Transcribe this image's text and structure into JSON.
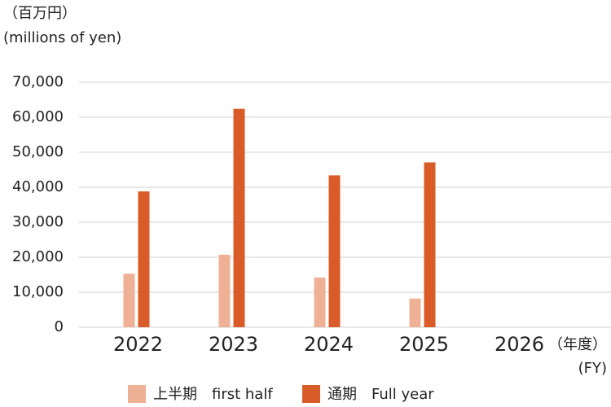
{
  "chart_data": {
    "type": "bar",
    "y_label_ja": "（百万円）",
    "y_label_en": "(millions of yen)",
    "x_label_ja": "（年度）",
    "x_label_en": "(FY)",
    "categories": [
      "2022",
      "2023",
      "2024",
      "2025",
      "2026"
    ],
    "series": [
      {
        "name": "上半期　first half",
        "color": "#efb196",
        "values": [
          15300,
          20700,
          14200,
          8200,
          null
        ]
      },
      {
        "name": "通期　Full year",
        "color": "#d95b27",
        "values": [
          38800,
          62400,
          43400,
          47100,
          null
        ]
      }
    ],
    "ylim": [
      0,
      70000
    ],
    "yticks": [
      0,
      {
        "value": 10000,
        "label": "10,000"
      },
      {
        "value": 20000,
        "label": "20,000"
      },
      {
        "value": 30000,
        "label": "30,000"
      },
      {
        "value": 40000,
        "label": "40,000"
      },
      {
        "value": 50000,
        "label": "50,000"
      },
      {
        "value": 60000,
        "label": "60,000"
      },
      {
        "value": 70000,
        "label": "70,000"
      }
    ],
    "grid": true
  }
}
